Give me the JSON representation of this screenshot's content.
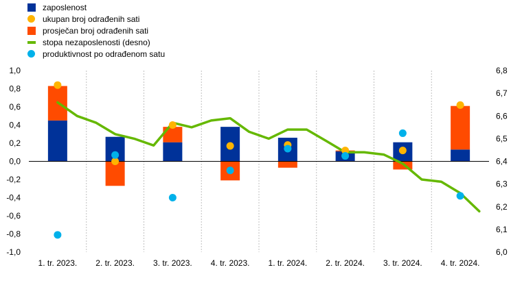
{
  "chart_data": {
    "type": "bar",
    "categories": [
      "1. tr. 2023.",
      "2. tr. 2023.",
      "3. tr. 2023.",
      "4. tr. 2023.",
      "1. tr. 2024.",
      "2. tr. 2024.",
      "3. tr. 2024.",
      "4. tr. 2024."
    ],
    "series": [
      {
        "name": "zaposlenost",
        "kind": "bar",
        "axis": "left",
        "color": "#003299",
        "values": [
          0.45,
          0.27,
          0.21,
          0.38,
          0.26,
          0.11,
          0.21,
          0.13
        ]
      },
      {
        "name": "ukupan broj odrađenih sati",
        "kind": "dot",
        "axis": "left",
        "color": "#FFB400",
        "values": [
          0.84,
          0.0,
          0.4,
          0.17,
          0.18,
          0.12,
          0.12,
          0.62
        ]
      },
      {
        "name": "prosječan broj odrađenih sati",
        "kind": "bar",
        "axis": "left",
        "color": "#FF4B00",
        "values": [
          0.38,
          -0.27,
          0.17,
          -0.21,
          -0.07,
          0.01,
          -0.09,
          0.48
        ]
      },
      {
        "name": "stopa nezaposlenosti (desno)",
        "kind": "line",
        "axis": "right",
        "color": "#65B800",
        "x": [
          0,
          0.34,
          0.67,
          1.0,
          1.33,
          1.67,
          2.0,
          2.33,
          2.67,
          3.0,
          3.33,
          3.67,
          4.0,
          4.33,
          4.67,
          5.0,
          5.33,
          5.67,
          6.0,
          6.33,
          6.67,
          7.0,
          7.33
        ],
        "values": [
          6.66,
          6.6,
          6.57,
          6.52,
          6.5,
          6.47,
          6.57,
          6.55,
          6.58,
          6.59,
          6.53,
          6.5,
          6.54,
          6.54,
          6.49,
          6.44,
          6.44,
          6.43,
          6.39,
          6.32,
          6.31,
          6.26,
          6.18
        ]
      },
      {
        "name": "produktivnost po odrađenom satu",
        "kind": "dot",
        "axis": "left",
        "color": "#00B1EA",
        "values": [
          -0.81,
          0.07,
          -0.4,
          -0.1,
          0.14,
          0.06,
          0.31,
          -0.38
        ]
      }
    ],
    "legend_order": [
      0,
      1,
      2,
      3,
      4
    ],
    "yaxis_left": {
      "min": -1.0,
      "max": 1.0,
      "ticks": [
        "-1,0",
        "-0,8",
        "-0,6",
        "-0,4",
        "-0,2",
        "0,0",
        "0,2",
        "0,4",
        "0,6",
        "0,8",
        "1,0"
      ]
    },
    "yaxis_right": {
      "min": 6.0,
      "max": 6.8,
      "ticks": [
        "6,0",
        "6,1",
        "6,2",
        "6,3",
        "6,4",
        "6,5",
        "6,6",
        "6,7",
        "6,8"
      ]
    },
    "grid": "vertical-dashed-separators",
    "legend_position": "top-left"
  }
}
